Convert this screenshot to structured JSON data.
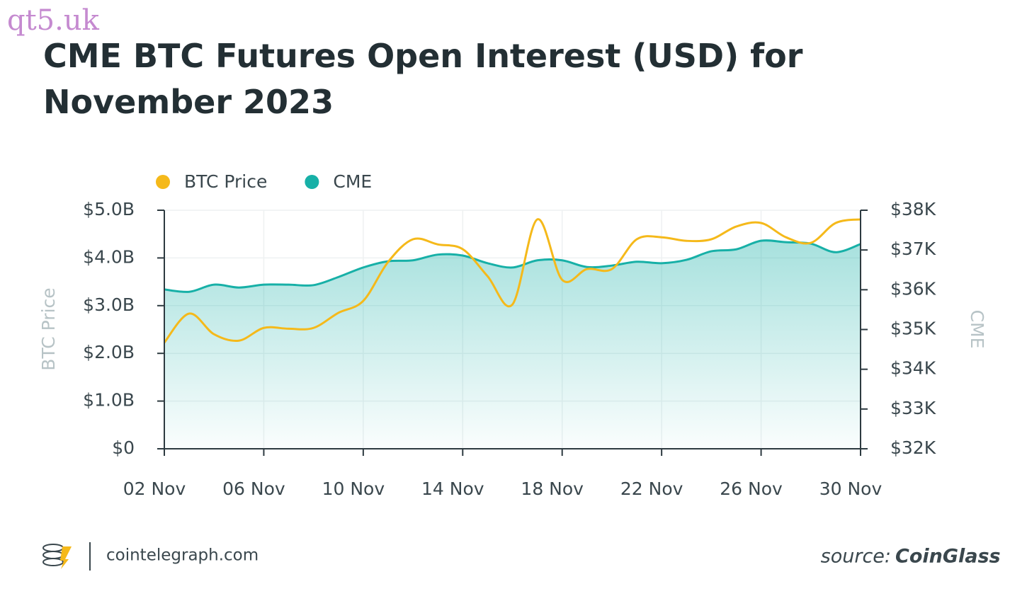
{
  "watermark": "qt5.uk",
  "chart_data": {
    "type": "line",
    "title": "CME BTC Futures Open Interest (USD) for November 2023",
    "y_label": "BTC Price",
    "y2_label": "CME",
    "categories": [
      "02 Nov",
      null,
      null,
      null,
      "06 Nov",
      null,
      null,
      null,
      "10 Nov",
      null,
      null,
      null,
      "14 Nov",
      null,
      null,
      null,
      "18 Nov",
      null,
      null,
      null,
      "22 Nov",
      null,
      null,
      null,
      "26 Nov",
      null,
      null,
      null,
      "30 Nov"
    ],
    "ylim": [
      0,
      5000000000
    ],
    "yticks": [
      {
        "value": 0,
        "label": "$0"
      },
      {
        "value": 1000000000,
        "label": "$1.0B"
      },
      {
        "value": 2000000000,
        "label": "$2.0B"
      },
      {
        "value": 3000000000,
        "label": "$3.0B"
      },
      {
        "value": 4000000000,
        "label": "$4.0B"
      },
      {
        "value": 5000000000,
        "label": "$5.0B"
      }
    ],
    "y2lim": [
      32000,
      38000
    ],
    "y2ticks": [
      {
        "value": 32000,
        "label": "$32K"
      },
      {
        "value": 33000,
        "label": "$33K"
      },
      {
        "value": 34000,
        "label": "$34K"
      },
      {
        "value": 35000,
        "label": "$35K"
      },
      {
        "value": 36000,
        "label": "$36K"
      },
      {
        "value": 37000,
        "label": "$37K"
      },
      {
        "value": 38000,
        "label": "$38K"
      }
    ],
    "grid": true,
    "legend": "top-left",
    "series": [
      {
        "name": "BTC Price",
        "color": "#f5b91a",
        "axis": "y2",
        "values": [
          34670,
          35400,
          34880,
          34720,
          35040,
          35020,
          35040,
          35420,
          35720,
          36700,
          37270,
          37140,
          37020,
          36340,
          35630,
          37770,
          36250,
          36520,
          36520,
          37270,
          37320,
          37230,
          37270,
          37590,
          37680,
          37320,
          37180,
          37680,
          37770
        ]
      },
      {
        "name": "CME",
        "color": "#17b0a7",
        "area": true,
        "values": [
          3340000000,
          3290000000,
          3440000000,
          3380000000,
          3440000000,
          3440000000,
          3430000000,
          3600000000,
          3800000000,
          3930000000,
          3950000000,
          4070000000,
          4050000000,
          3890000000,
          3800000000,
          3950000000,
          3950000000,
          3810000000,
          3840000000,
          3920000000,
          3890000000,
          3960000000,
          4140000000,
          4180000000,
          4360000000,
          4330000000,
          4300000000,
          4120000000,
          4290000000
        ]
      }
    ]
  },
  "footer": {
    "site": "cointelegraph.com",
    "source_prefix": "source:",
    "source_name": "CoinGlass"
  }
}
